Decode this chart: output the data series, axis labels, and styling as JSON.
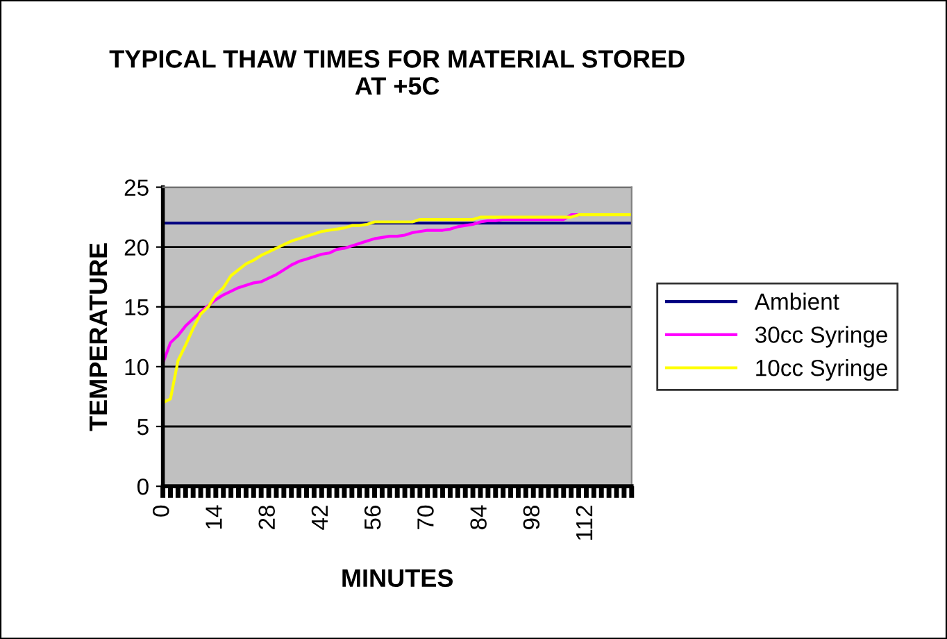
{
  "chart_data": {
    "type": "line",
    "title": "TYPICAL THAW TIMES FOR MATERIAL STORED\nAT +5C",
    "xlabel": "MINUTES",
    "ylabel": "TEMPERATURE",
    "categories": [
      "0",
      null,
      null,
      null,
      null,
      null,
      null,
      "14",
      null,
      null,
      null,
      null,
      null,
      null,
      "28",
      null,
      null,
      null,
      null,
      null,
      null,
      "42",
      null,
      null,
      null,
      null,
      null,
      null,
      "56",
      null,
      null,
      null,
      null,
      null,
      null,
      "70",
      null,
      null,
      null,
      null,
      null,
      null,
      "84",
      null,
      null,
      null,
      null,
      null,
      null,
      "98",
      null,
      null,
      null,
      null,
      null,
      null,
      "112",
      null,
      null,
      null,
      null,
      null,
      null
    ],
    "series": [
      {
        "name": "Ambient",
        "color": "#000080",
        "values": [
          22,
          22,
          22,
          22,
          22,
          22,
          22,
          22,
          22,
          22,
          22,
          22,
          22,
          22,
          22,
          22,
          22,
          22,
          22,
          22,
          22,
          22,
          22,
          22,
          22,
          22,
          22,
          22,
          22,
          22,
          22,
          22,
          22,
          22,
          22,
          22,
          22,
          22,
          22,
          22,
          22,
          22,
          22,
          22,
          22,
          22,
          22,
          22,
          22,
          22,
          22,
          22,
          22,
          22,
          22,
          22,
          22,
          22,
          22,
          22,
          22,
          22,
          22
        ]
      },
      {
        "name": "30cc Syringe",
        "color": "#ff00ff",
        "values": [
          10.3,
          12.0,
          12.6,
          13.4,
          14.0,
          14.6,
          15.1,
          15.6,
          16.0,
          16.3,
          16.6,
          16.8,
          17.0,
          17.1,
          17.4,
          17.7,
          18.1,
          18.5,
          18.8,
          19.0,
          19.2,
          19.4,
          19.5,
          19.8,
          19.9,
          20.1,
          20.3,
          20.5,
          20.7,
          20.8,
          20.9,
          20.9,
          21.0,
          21.2,
          21.3,
          21.4,
          21.4,
          21.4,
          21.5,
          21.7,
          21.8,
          21.9,
          22.1,
          22.2,
          22.2,
          22.3,
          22.3,
          22.3,
          22.3,
          22.3,
          22.3,
          22.3,
          22.3,
          22.3,
          22.7,
          22.7,
          null,
          null,
          null,
          null,
          null,
          null,
          null
        ]
      },
      {
        "name": "10cc Syringe",
        "color": "#ffff00",
        "values": [
          7.0,
          7.3,
          10.5,
          11.8,
          13.2,
          14.4,
          15.0,
          16.0,
          16.6,
          17.6,
          18.1,
          18.6,
          18.9,
          19.3,
          19.6,
          19.9,
          20.2,
          20.5,
          20.7,
          20.9,
          21.1,
          21.3,
          21.4,
          21.5,
          21.6,
          21.8,
          21.8,
          21.9,
          22.1,
          22.1,
          22.1,
          22.1,
          22.1,
          22.1,
          22.3,
          22.3,
          22.3,
          22.3,
          22.3,
          22.3,
          22.3,
          22.3,
          22.5,
          22.5,
          22.5,
          22.5,
          22.5,
          22.5,
          22.5,
          22.5,
          22.5,
          22.5,
          22.5,
          22.5,
          22.5,
          22.7,
          22.7,
          22.7,
          22.7,
          22.7,
          22.7,
          22.7,
          22.7
        ]
      }
    ],
    "ylim": [
      0,
      25
    ],
    "yticks": [
      0,
      5,
      10,
      15,
      20,
      25
    ],
    "grid": "y",
    "legend": "right",
    "marker": "none",
    "line_style": "solid"
  }
}
